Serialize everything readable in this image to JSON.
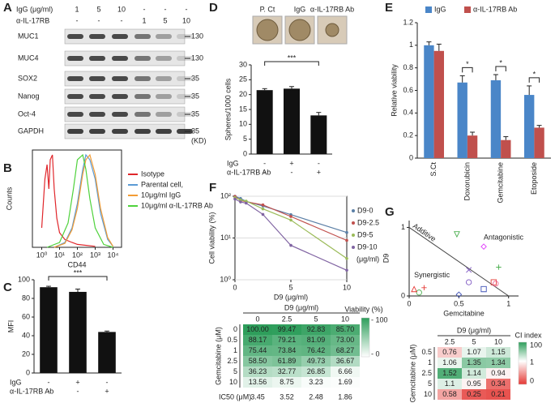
{
  "panels": [
    "A",
    "B",
    "C",
    "D",
    "E",
    "F",
    "G"
  ],
  "blot": {
    "lanes": [
      {
        "name": "IgG (μg/ml)",
        "values": [
          "1",
          "5",
          "10",
          "-",
          "-",
          "-"
        ]
      },
      {
        "name": "α-IL-17RB",
        "values": [
          "-",
          "-",
          "-",
          "1",
          "5",
          "10"
        ]
      }
    ],
    "proteins": [
      "MUC1",
      "MUC4",
      "SOX2",
      "Nanog",
      "Oct-4",
      "GAPDH"
    ],
    "markers": [
      "130",
      "130",
      "35",
      "35",
      "35",
      "35"
    ],
    "unit": "(KD)"
  },
  "spheres": {
    "labels": [
      "P. Ct",
      "IgG",
      "α-IL-17RB Ab"
    ]
  },
  "chart_data": [
    {
      "type": "density",
      "xlabel": "CD44",
      "ylabel": "Counts",
      "xscale": "log",
      "xlim": [
        0.3,
        30000
      ],
      "ylim": [
        0,
        100
      ],
      "xticks": [
        {
          "value": 1,
          "label": "10⁰"
        },
        {
          "value": 10,
          "label": "10¹"
        },
        {
          "value": 100,
          "label": "10²"
        },
        {
          "value": 1000,
          "label": "10³"
        },
        {
          "value": 10000,
          "label": "10⁴"
        }
      ],
      "series": [
        {
          "name": "Isotype",
          "color": "#e0262b",
          "x": [
            1,
            1.5,
            2,
            2.5,
            3,
            4,
            5,
            7,
            10,
            20,
            50,
            100,
            1000
          ],
          "values": [
            20,
            70,
            85,
            60,
            90,
            95,
            60,
            30,
            15,
            8,
            5,
            3,
            1
          ]
        },
        {
          "name": "Parental cell,",
          "color": "#5b9bd5",
          "x": [
            5,
            20,
            50,
            100,
            200,
            300,
            500,
            1000,
            2000,
            5000,
            10000
          ],
          "values": [
            0,
            5,
            20,
            45,
            80,
            95,
            90,
            70,
            35,
            8,
            1
          ]
        },
        {
          "name": "10μg/ml  IgG",
          "color": "#f39c34",
          "x": [
            5,
            20,
            50,
            100,
            200,
            300,
            500,
            1000,
            2000,
            5000,
            10000
          ],
          "values": [
            0,
            4,
            18,
            40,
            75,
            90,
            95,
            75,
            40,
            10,
            1
          ]
        },
        {
          "name": "10μg/ml  α-IL-17RB Ab",
          "color": "#4fd23c",
          "x": [
            2,
            10,
            30,
            60,
            100,
            200,
            300,
            500,
            1000,
            3000,
            10000
          ],
          "values": [
            0,
            5,
            25,
            60,
            90,
            95,
            80,
            50,
            20,
            3,
            0
          ]
        }
      ]
    },
    {
      "type": "bar",
      "ylabel": "MFI",
      "ylim": [
        0,
        100
      ],
      "yticks": [
        0,
        20,
        40,
        60,
        80,
        100
      ],
      "color": "#111111",
      "values": [
        92,
        87,
        44
      ],
      "errors": [
        1,
        3,
        1
      ],
      "significance": "***",
      "conditions": [
        {
          "name": "IgG",
          "signs": [
            "-",
            "+",
            "-"
          ]
        },
        {
          "name": "α-IL-17RB Ab",
          "signs": [
            "-",
            "-",
            "+"
          ]
        }
      ]
    },
    {
      "type": "bar",
      "ylabel": "Spheres/1000 cells",
      "ylim": [
        0,
        30
      ],
      "yticks": [
        0,
        5,
        10,
        15,
        20,
        25,
        30
      ],
      "color": "#111111",
      "values": [
        21.5,
        22,
        13
      ],
      "errors": [
        0.5,
        0.7,
        1
      ],
      "significance": "***",
      "conditions": [
        {
          "name": "IgG",
          "signs": [
            "-",
            "+",
            "-"
          ]
        },
        {
          "name": "α-IL-17RB Ab",
          "signs": [
            "-",
            "-",
            "+"
          ]
        }
      ]
    },
    {
      "type": "grouped_bar",
      "ylabel": "Relative viability",
      "ylim": [
        0,
        1.2
      ],
      "yticks": [
        0,
        0.2,
        0.4,
        0.6,
        0.8,
        1,
        1.2
      ],
      "categories": [
        "S.Ct",
        "Doxorubicin",
        "Gemcitabine",
        "Etoposide"
      ],
      "significance": [
        null,
        "*",
        "*",
        "*"
      ],
      "legend": "top-left",
      "series": [
        {
          "name": "IgG",
          "color": "#4a86c8",
          "values": [
            1.0,
            0.67,
            0.69,
            0.56
          ],
          "errors": [
            0.03,
            0.06,
            0.05,
            0.08
          ]
        },
        {
          "name": "α-IL-17RB Ab",
          "color": "#c0504d",
          "values": [
            0.95,
            0.2,
            0.16,
            0.27
          ],
          "errors": [
            0.06,
            0.03,
            0.03,
            0.02
          ]
        }
      ]
    },
    {
      "type": "line",
      "xlabel": "D9 (μg/ml)",
      "ylabel": "Cell viability (%)",
      "legend_note": "(μg/ml)",
      "yscale": "log",
      "grid": true,
      "xlim": [
        0,
        10
      ],
      "xticks": [
        0,
        5,
        10
      ],
      "ylim": [
        1,
        100
      ],
      "yticks": [
        {
          "value": 1,
          "label": "10⁰"
        },
        {
          "value": 10,
          "label": "10¹"
        },
        {
          "value": 100,
          "label": "10²"
        }
      ],
      "x": [
        0,
        0.5,
        1,
        2.5,
        5,
        10
      ],
      "series": [
        {
          "name": "D9-0",
          "color": "#5b7fa6",
          "values": [
            100,
            88.17,
            75.44,
            58.5,
            36.23,
            13.56
          ]
        },
        {
          "name": "D9-2.5",
          "color": "#c0504d",
          "values": [
            99.47,
            79.21,
            73.84,
            61.89,
            32.77,
            8.75
          ]
        },
        {
          "name": "D9-5",
          "color": "#9bbb59",
          "values": [
            92.83,
            81.09,
            76.42,
            49.73,
            26.85,
            3.23
          ]
        },
        {
          "name": "D9-10",
          "color": "#8064a2",
          "values": [
            85.7,
            73,
            68.27,
            36.67,
            6.66,
            1.69
          ]
        }
      ]
    },
    {
      "type": "scatter",
      "xlabel": "Gemcitabine",
      "ylabel": "D9",
      "xlim": [
        0,
        1.1
      ],
      "ylim": [
        0,
        1.1
      ],
      "xticks": [
        0,
        0.5,
        1
      ],
      "yticks": [
        0,
        1
      ],
      "annotations": [
        "Additive",
        "Antagonistic",
        "Synergistic"
      ],
      "x": [
        0.48,
        0.75,
        0.9,
        0.6,
        0.6,
        0.85,
        0.87,
        0.75,
        0.15,
        0.1,
        0.5,
        0.05
      ],
      "values": [
        0.9,
        0.72,
        0.42,
        0.38,
        0.2,
        0.2,
        0.18,
        0.1,
        0.12,
        0.05,
        0.02,
        0.1
      ],
      "colors": [
        "#4caf50",
        "#e040fb",
        "#4caf50",
        "#7e57c2",
        "#7e57c2",
        "#e53935",
        "#f06292",
        "#3f51b5",
        "#e53935",
        "#4caf50",
        "#3f51b5",
        "#e53935"
      ],
      "markers": [
        "tri-down",
        "diamond",
        "plus",
        "cross",
        "circle",
        "square",
        "circle",
        "square",
        "plus",
        "circle",
        "diamond",
        "tri-up"
      ]
    }
  ],
  "tables": {
    "viability": {
      "header": "D9 (μg/ml)",
      "row_header": "Gemcitabine (μM)",
      "columns": [
        "0",
        "2.5",
        "5",
        "10"
      ],
      "rows": [
        {
          "label": "0",
          "cells": [
            "100.00",
            "99.47",
            "92.83",
            "85.70"
          ]
        },
        {
          "label": "0.5",
          "cells": [
            "88.17",
            "79.21",
            "81.09",
            "73.00"
          ]
        },
        {
          "label": "1",
          "cells": [
            "75.44",
            "73.84",
            "76.42",
            "68.27"
          ]
        },
        {
          "label": "2.5",
          "cells": [
            "58.50",
            "61.89",
            "49.73",
            "36.67"
          ]
        },
        {
          "label": "5",
          "cells": [
            "36.23",
            "32.77",
            "26.85",
            "6.66"
          ]
        },
        {
          "label": "10",
          "cells": [
            "13.56",
            "8.75",
            "3.23",
            "1.69"
          ]
        }
      ],
      "footer": {
        "label": "IC50 (μM)",
        "cells": [
          "3.45",
          "3.52",
          "2.48",
          "1.86"
        ]
      },
      "legend": {
        "title": "Viability (%)",
        "high": "- 100",
        "low": "- 0"
      }
    },
    "ci": {
      "header": "D9 (μg/ml)",
      "row_header": "Gemcitabine (μM)",
      "columns": [
        "2.5",
        "5",
        "10"
      ],
      "rows": [
        {
          "label": "0.5",
          "cells": [
            "0.76",
            "1.07",
            "1.15"
          ]
        },
        {
          "label": "1",
          "cells": [
            "1.06",
            "1.35",
            "1.34"
          ]
        },
        {
          "label": "2.5",
          "cells": [
            "1.52",
            "1.14",
            "0.94"
          ]
        },
        {
          "label": "5",
          "cells": [
            "1.1",
            "0.95",
            "0.34"
          ]
        },
        {
          "label": "10",
          "cells": [
            "0.58",
            "0.25",
            "0.21"
          ]
        }
      ],
      "legend": {
        "title": "CI index",
        "high": "100",
        "mid": "1",
        "low": "0"
      }
    }
  }
}
